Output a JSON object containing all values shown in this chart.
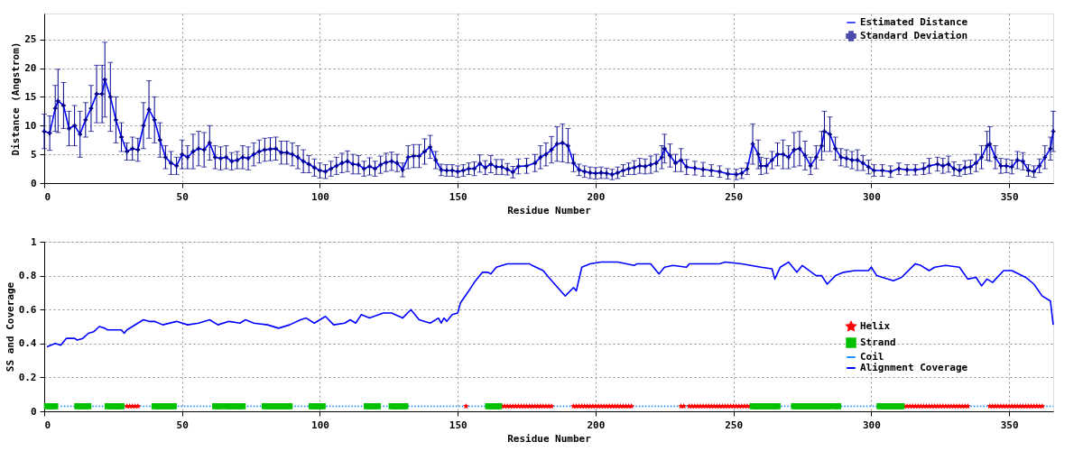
{
  "chart_data": [
    {
      "type": "line",
      "xlabel": "Residue Number",
      "ylabel": "Distance (Angstrom)",
      "xlim": [
        0,
        366
      ],
      "xticks": [
        0,
        50,
        100,
        150,
        200,
        250,
        300,
        350
      ],
      "ylim": [
        0,
        29.5
      ],
      "yticks": [
        0,
        5,
        10,
        15,
        20,
        25
      ],
      "grid": true,
      "legend": "top right",
      "x": [
        0,
        2,
        4,
        5,
        7,
        9,
        11,
        13,
        15,
        17,
        19,
        21,
        22,
        24,
        26,
        28,
        30,
        32,
        34,
        36,
        38,
        40,
        42,
        44,
        46,
        48,
        50,
        52,
        54,
        56,
        58,
        60,
        62,
        64,
        66,
        68,
        70,
        72,
        74,
        76,
        78,
        80,
        82,
        84,
        86,
        88,
        90,
        92,
        94,
        96,
        98,
        100,
        102,
        104,
        106,
        108,
        110,
        112,
        114,
        116,
        118,
        120,
        122,
        124,
        126,
        128,
        130,
        132,
        134,
        136,
        138,
        140,
        142,
        144,
        146,
        148,
        150,
        152,
        154,
        156,
        158,
        160,
        162,
        164,
        166,
        168,
        170,
        172,
        175,
        178,
        180,
        182,
        184,
        186,
        188,
        190,
        192,
        194,
        196,
        198,
        200,
        202,
        204,
        206,
        208,
        210,
        212,
        214,
        216,
        218,
        220,
        222,
        224,
        225,
        227,
        229,
        231,
        233,
        236,
        239,
        242,
        245,
        248,
        251,
        253,
        255,
        257,
        259,
        260,
        262,
        264,
        266,
        268,
        270,
        272,
        274,
        276,
        278,
        280,
        282,
        283,
        285,
        287,
        289,
        291,
        293,
        295,
        297,
        299,
        301,
        304,
        307,
        310,
        313,
        316,
        319,
        321,
        324,
        326,
        328,
        330,
        332,
        334,
        336,
        338,
        340,
        342,
        343,
        345,
        347,
        349,
        351,
        353,
        355,
        357,
        359,
        361,
        363,
        365,
        366
      ],
      "series": [
        {
          "name": "Estimated Distance",
          "color": "#0000ff",
          "values": [
            9,
            8.7,
            13,
            14.3,
            13.5,
            9.5,
            10,
            8.5,
            11,
            13,
            15.5,
            15.5,
            18,
            15,
            11,
            8,
            5.5,
            6,
            5.8,
            10,
            12.8,
            11,
            7.5,
            4.5,
            3.5,
            3,
            5,
            4.5,
            5.5,
            6,
            5.8,
            7,
            4.5,
            4.3,
            4.5,
            3.8,
            4,
            4.5,
            4.3,
            5,
            5.5,
            5.8,
            5.9,
            6,
            5.3,
            5.3,
            5,
            4.5,
            3.8,
            3.3,
            2.7,
            2.2,
            2,
            2.5,
            3,
            3.5,
            3.8,
            3.3,
            3.2,
            2.5,
            2.9,
            2.5,
            3.2,
            3.6,
            3.8,
            3.5,
            2.3,
            4.5,
            4.7,
            4.7,
            5.5,
            6.3,
            4,
            2.3,
            2.2,
            2.2,
            2,
            2.2,
            2.5,
            2.5,
            3.4,
            2.7,
            3.3,
            2.8,
            2.8,
            2.4,
            1.9,
            2.9,
            3,
            3.5,
            4.5,
            5,
            5.8,
            6.8,
            7,
            6.5,
            3.5,
            2.3,
            2,
            1.8,
            1.7,
            1.8,
            1.7,
            1.5,
            1.8,
            2.2,
            2.5,
            2.7,
            3,
            2.9,
            3.2,
            3.5,
            4.5,
            6,
            4.8,
            3.5,
            4,
            2.8,
            2.6,
            2.4,
            2.2,
            2,
            1.6,
            1.5,
            1.7,
            2.5,
            6.8,
            5,
            3,
            3,
            4,
            5,
            5,
            4.5,
            5.8,
            6,
            4.8,
            3,
            4.5,
            6.5,
            9,
            8.5,
            6,
            4.5,
            4.3,
            4,
            4,
            3.5,
            2.8,
            2.2,
            2.2,
            2,
            2.5,
            2.3,
            2.3,
            2.5,
            3,
            3.3,
            3,
            3.3,
            2.5,
            2.2,
            2.7,
            2.8,
            3.5,
            4.5,
            6.5,
            6.8,
            4.5,
            3,
            3,
            2.8,
            4,
            3.8,
            2.2,
            2,
            3,
            4.5,
            6,
            9
          ]
        },
        {
          "name": "Standard Deviation",
          "type": "scatter",
          "marker": "cross",
          "color": "#00008b",
          "values": [
            9,
            8.7,
            13,
            14.3,
            13.5,
            9.5,
            10,
            8.5,
            11,
            13,
            15.5,
            15.5,
            18,
            15,
            11,
            8,
            5.5,
            6,
            5.8,
            10,
            12.8,
            11,
            7.5,
            4.5,
            3.5,
            3,
            5,
            4.5,
            5.5,
            6,
            5.8,
            7,
            4.5,
            4.3,
            4.5,
            3.8,
            4,
            4.5,
            4.3,
            5,
            5.5,
            5.8,
            5.9,
            6,
            5.3,
            5.3,
            5,
            4.5,
            3.8,
            3.3,
            2.7,
            2.2,
            2,
            2.5,
            3,
            3.5,
            3.8,
            3.3,
            3.2,
            2.5,
            2.9,
            2.5,
            3.2,
            3.6,
            3.8,
            3.5,
            2.3,
            4.5,
            4.7,
            4.7,
            5.5,
            6.3,
            4,
            2.3,
            2.2,
            2.2,
            2,
            2.2,
            2.5,
            2.5,
            3.4,
            2.7,
            3.3,
            2.8,
            2.8,
            2.4,
            1.9,
            2.9,
            3,
            3.5,
            4.5,
            5,
            5.8,
            6.8,
            7,
            6.5,
            3.5,
            2.3,
            2,
            1.8,
            1.7,
            1.8,
            1.7,
            1.5,
            1.8,
            2.2,
            2.5,
            2.7,
            3,
            2.9,
            3.2,
            3.5,
            4.5,
            6,
            4.8,
            3.5,
            4,
            2.8,
            2.6,
            2.4,
            2.2,
            2,
            1.6,
            1.5,
            1.7,
            2.5,
            6.8,
            5,
            3,
            3,
            4,
            5,
            5,
            4.5,
            5.8,
            6,
            4.8,
            3,
            4.5,
            6.5,
            9,
            8.5,
            6,
            4.5,
            4.3,
            4,
            4,
            3.5,
            2.8,
            2.2,
            2.2,
            2,
            2.5,
            2.3,
            2.3,
            2.5,
            3,
            3.3,
            3,
            3.3,
            2.5,
            2.2,
            2.7,
            2.8,
            3.5,
            4.5,
            6.5,
            6.8,
            4.5,
            3,
            3,
            2.8,
            4,
            3.8,
            2.2,
            2,
            3,
            4.5,
            6,
            9
          ],
          "errors": [
            3,
            3,
            4,
            5.5,
            4,
            3,
            3.5,
            4,
            3,
            4,
            5,
            5,
            6.5,
            6,
            4,
            2.5,
            1.5,
            2,
            2,
            4,
            5,
            4,
            3,
            2,
            2,
            1.5,
            2.5,
            2,
            3,
            3,
            3,
            3,
            2,
            2,
            2,
            1.5,
            1.5,
            2,
            2,
            2,
            2,
            2,
            2,
            2,
            2,
            2,
            2,
            2,
            2,
            1.5,
            1.5,
            1.3,
            1.2,
            1.3,
            1.5,
            1.7,
            1.8,
            1.7,
            1.6,
            1.3,
            1.5,
            1.3,
            1.5,
            1.6,
            1.6,
            1.5,
            1.2,
            2,
            2,
            2,
            2.2,
            2,
            1.5,
            1,
            1,
            1,
            1,
            1,
            1,
            1.2,
            1.5,
            1.2,
            1.5,
            1.3,
            1.3,
            1,
            1,
            1.3,
            1.3,
            1.5,
            2,
            2,
            2.3,
            3,
            3.3,
            3,
            1.5,
            1,
            1,
            1,
            1,
            1,
            0.9,
            0.9,
            1,
            1,
            1,
            1.2,
            1.3,
            1.3,
            1.5,
            1.5,
            2,
            2.5,
            2,
            1.5,
            2,
            1.3,
            1.2,
            1.2,
            1,
            1,
            0.9,
            0.9,
            0.9,
            1,
            3.5,
            2.5,
            1.5,
            1.3,
            1.5,
            2,
            2.5,
            2,
            3,
            3,
            2.5,
            1.5,
            2,
            2.5,
            3.5,
            3,
            2,
            1.5,
            1.5,
            1.5,
            1.8,
            1.3,
            1.2,
            1,
            1,
            1,
            1,
            0.9,
            0.9,
            1,
            1.3,
            1.2,
            1.3,
            1.4,
            1.2,
            1,
            1.2,
            1.2,
            1.5,
            2,
            2.5,
            3,
            2,
            1.3,
            1.2,
            1.2,
            1.5,
            1.5,
            1,
            1,
            1.2,
            2,
            2,
            3.5
          ]
        }
      ]
    },
    {
      "type": "line",
      "xlabel": "Residue Number",
      "ylabel": "SS and Coverage",
      "xlim": [
        0,
        366
      ],
      "xticks": [
        0,
        50,
        100,
        150,
        200,
        250,
        300,
        350
      ],
      "ylim": [
        0,
        1
      ],
      "yticks": [
        0,
        0.2,
        0.4,
        0.6,
        0.8,
        1
      ],
      "grid": true,
      "legend": "bottom right",
      "series": [
        {
          "name": "Helix",
          "type": "scatter",
          "marker": "star",
          "color": "#ff0000",
          "x": [
            30,
            31,
            32,
            33,
            34,
            153,
            166,
            167,
            168,
            169,
            170,
            171,
            172,
            173,
            174,
            175,
            176,
            177,
            178,
            179,
            180,
            181,
            182,
            183,
            184,
            192,
            193,
            194,
            195,
            196,
            197,
            198,
            199,
            200,
            201,
            202,
            203,
            204,
            205,
            206,
            207,
            208,
            209,
            210,
            211,
            212,
            213,
            231,
            232,
            234,
            235,
            236,
            237,
            238,
            239,
            240,
            241,
            242,
            243,
            244,
            245,
            246,
            247,
            248,
            249,
            250,
            251,
            252,
            253,
            254,
            255,
            256,
            312,
            313,
            314,
            315,
            316,
            317,
            318,
            319,
            320,
            321,
            322,
            323,
            324,
            325,
            326,
            327,
            328,
            329,
            330,
            331,
            332,
            333,
            334,
            335,
            343,
            344,
            345,
            346,
            347,
            348,
            349,
            350,
            351,
            352,
            353,
            354,
            355,
            356,
            357,
            358,
            359,
            360,
            361,
            362
          ],
          "values": [
            0.03,
            0.03,
            0.03,
            0.03,
            0.03,
            0.03,
            0.03,
            0.03,
            0.03,
            0.03,
            0.03,
            0.03,
            0.03,
            0.03,
            0.03,
            0.03,
            0.03,
            0.03,
            0.03,
            0.03,
            0.03,
            0.03,
            0.03,
            0.03,
            0.03,
            0.03,
            0.03,
            0.03,
            0.03,
            0.03,
            0.03,
            0.03,
            0.03,
            0.03,
            0.03,
            0.03,
            0.03,
            0.03,
            0.03,
            0.03,
            0.03,
            0.03,
            0.03,
            0.03,
            0.03,
            0.03,
            0.03,
            0.03,
            0.03,
            0.03,
            0.03,
            0.03,
            0.03,
            0.03,
            0.03,
            0.03,
            0.03,
            0.03,
            0.03,
            0.03,
            0.03,
            0.03,
            0.03,
            0.03,
            0.03,
            0.03,
            0.03,
            0.03,
            0.03,
            0.03,
            0.03,
            0.03,
            0.03,
            0.03,
            0.03,
            0.03,
            0.03,
            0.03,
            0.03,
            0.03,
            0.03,
            0.03,
            0.03,
            0.03,
            0.03,
            0.03,
            0.03,
            0.03,
            0.03,
            0.03,
            0.03,
            0.03,
            0.03,
            0.03,
            0.03,
            0.03,
            0.03,
            0.03,
            0.03,
            0.03,
            0.03,
            0.03,
            0.03,
            0.03,
            0.03,
            0.03,
            0.03,
            0.03,
            0.03,
            0.03,
            0.03,
            0.03,
            0.03,
            0.03,
            0.03,
            0.03
          ]
        },
        {
          "name": "Strand",
          "type": "scatter",
          "marker": "square",
          "color": "#00c000",
          "x": [
            1,
            2,
            3,
            4,
            12,
            13,
            14,
            15,
            16,
            23,
            24,
            25,
            26,
            27,
            28,
            40,
            41,
            42,
            43,
            44,
            45,
            46,
            47,
            62,
            63,
            64,
            66,
            67,
            68,
            69,
            70,
            71,
            72,
            80,
            81,
            82,
            83,
            84,
            85,
            86,
            87,
            88,
            89,
            97,
            98,
            99,
            100,
            101,
            117,
            118,
            119,
            120,
            121,
            126,
            127,
            128,
            129,
            130,
            131,
            161,
            162,
            163,
            164,
            165,
            257,
            258,
            259,
            260,
            261,
            262,
            263,
            264,
            265,
            266,
            272,
            273,
            274,
            275,
            276,
            277,
            278,
            279,
            280,
            281,
            282,
            283,
            284,
            285,
            287,
            288,
            303,
            304,
            305,
            306,
            307,
            308,
            309,
            310,
            311
          ],
          "values": [
            0.03,
            0.03,
            0.03,
            0.03,
            0.03,
            0.03,
            0.03,
            0.03,
            0.03,
            0.03,
            0.03,
            0.03,
            0.03,
            0.03,
            0.03,
            0.03,
            0.03,
            0.03,
            0.03,
            0.03,
            0.03,
            0.03,
            0.03,
            0.03,
            0.03,
            0.03,
            0.03,
            0.03,
            0.03,
            0.03,
            0.03,
            0.03,
            0.03,
            0.03,
            0.03,
            0.03,
            0.03,
            0.03,
            0.03,
            0.03,
            0.03,
            0.03,
            0.03,
            0.03,
            0.03,
            0.03,
            0.03,
            0.03,
            0.03,
            0.03,
            0.03,
            0.03,
            0.03,
            0.03,
            0.03,
            0.03,
            0.03,
            0.03,
            0.03,
            0.03,
            0.03,
            0.03,
            0.03,
            0.03,
            0.03,
            0.03,
            0.03,
            0.03,
            0.03,
            0.03,
            0.03,
            0.03,
            0.03,
            0.03,
            0.03,
            0.03,
            0.03,
            0.03,
            0.03,
            0.03,
            0.03,
            0.03,
            0.03,
            0.03,
            0.03,
            0.03,
            0.03,
            0.03,
            0.03,
            0.03,
            0.03,
            0.03,
            0.03,
            0.03,
            0.03,
            0.03,
            0.03,
            0.03,
            0.03
          ]
        },
        {
          "name": "Coil",
          "line_style": "dotted",
          "color": "#1e90ff",
          "x": [
            6,
            366
          ],
          "values": [
            0.03,
            0.03
          ]
        },
        {
          "name": "Alignment Coverage",
          "color": "#0000ff",
          "x": [
            1,
            4,
            6,
            8,
            11,
            12,
            14,
            16,
            18,
            20,
            22,
            23,
            28,
            29,
            30,
            32,
            34,
            36,
            38,
            40,
            43,
            48,
            52,
            56,
            60,
            63,
            67,
            71,
            73,
            76,
            81,
            85,
            89,
            93,
            95,
            98,
            102,
            105,
            109,
            111,
            113,
            115,
            118,
            123,
            126,
            130,
            133,
            136,
            140,
            143,
            144,
            145,
            146,
            148,
            150,
            151,
            154,
            156,
            159,
            161,
            162,
            164,
            168,
            176,
            177,
            181,
            183,
            189,
            192,
            193,
            195,
            198,
            202,
            208,
            214,
            215,
            220,
            223,
            225,
            228,
            233,
            234,
            245,
            247,
            253,
            260,
            264,
            265,
            267,
            270,
            273,
            275,
            280,
            282,
            284,
            287,
            290,
            294,
            299,
            300,
            302,
            308,
            311,
            316,
            318,
            321,
            323,
            327,
            332,
            335,
            338,
            340,
            342,
            344,
            348,
            351,
            356,
            359,
            362,
            365,
            366
          ],
          "values": [
            0.38,
            0.4,
            0.39,
            0.43,
            0.43,
            0.42,
            0.43,
            0.46,
            0.47,
            0.5,
            0.49,
            0.48,
            0.48,
            0.46,
            0.48,
            0.5,
            0.52,
            0.54,
            0.53,
            0.53,
            0.51,
            0.53,
            0.51,
            0.52,
            0.54,
            0.51,
            0.53,
            0.52,
            0.54,
            0.52,
            0.51,
            0.49,
            0.51,
            0.54,
            0.55,
            0.52,
            0.56,
            0.51,
            0.52,
            0.54,
            0.52,
            0.57,
            0.55,
            0.58,
            0.58,
            0.55,
            0.6,
            0.54,
            0.52,
            0.55,
            0.52,
            0.55,
            0.53,
            0.57,
            0.58,
            0.64,
            0.71,
            0.76,
            0.82,
            0.82,
            0.81,
            0.85,
            0.87,
            0.87,
            0.86,
            0.83,
            0.79,
            0.68,
            0.73,
            0.71,
            0.85,
            0.87,
            0.88,
            0.88,
            0.86,
            0.87,
            0.87,
            0.81,
            0.85,
            0.86,
            0.85,
            0.87,
            0.87,
            0.88,
            0.87,
            0.85,
            0.84,
            0.78,
            0.85,
            0.88,
            0.82,
            0.86,
            0.8,
            0.8,
            0.75,
            0.8,
            0.82,
            0.83,
            0.83,
            0.85,
            0.8,
            0.77,
            0.79,
            0.87,
            0.86,
            0.83,
            0.85,
            0.86,
            0.85,
            0.78,
            0.79,
            0.74,
            0.78,
            0.76,
            0.83,
            0.83,
            0.79,
            0.75,
            0.68,
            0.65,
            0.51
          ]
        }
      ]
    }
  ]
}
